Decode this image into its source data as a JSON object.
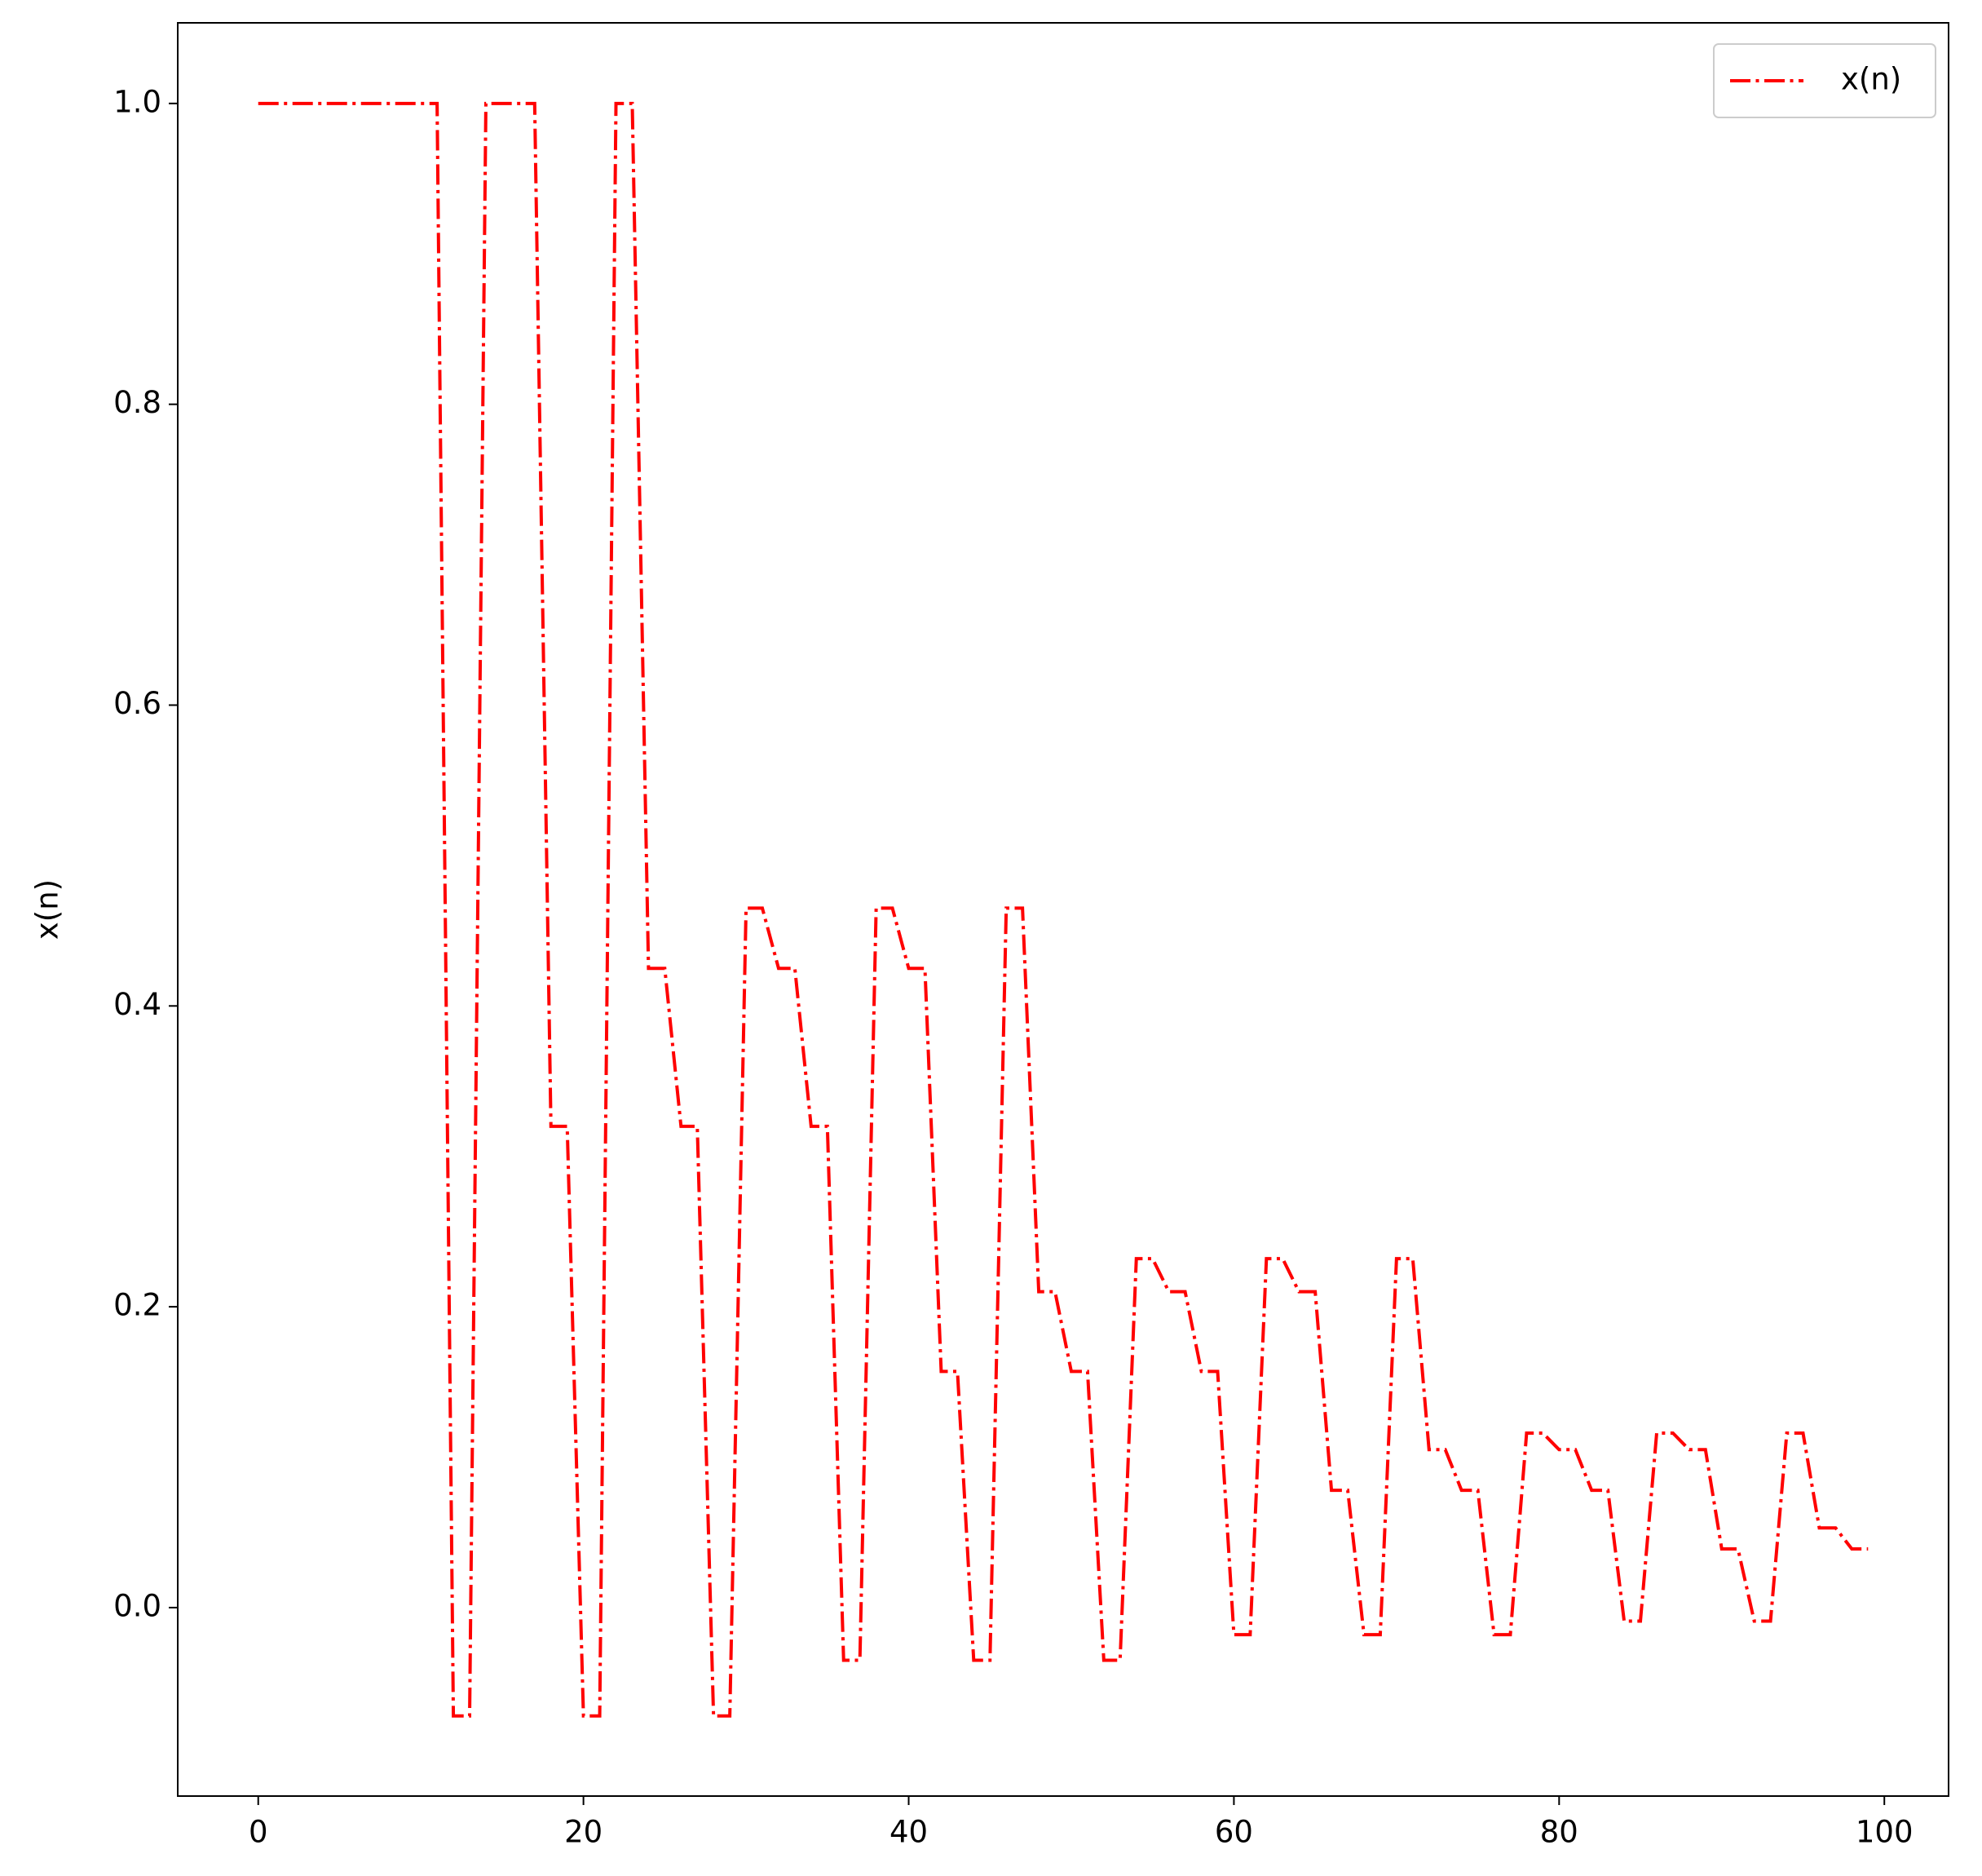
{
  "chart_data": {
    "type": "line",
    "y_label": "x(n)",
    "x": [
      0,
      1,
      2,
      3,
      4,
      5,
      6,
      7,
      8,
      9,
      10,
      11,
      12,
      13,
      14,
      15,
      16,
      17,
      18,
      19,
      20,
      21,
      22,
      23,
      24,
      25,
      26,
      27,
      28,
      29,
      30,
      31,
      32,
      33,
      34,
      35,
      36,
      37,
      38,
      39,
      40,
      41,
      42,
      43,
      44,
      45,
      46,
      47,
      48,
      49,
      50,
      51,
      52,
      53,
      54,
      55,
      56,
      57,
      58,
      59,
      60,
      61,
      62,
      63,
      64,
      65,
      66,
      67,
      68,
      69,
      70,
      71,
      72,
      73,
      74,
      75,
      76,
      77,
      78,
      79,
      80,
      81,
      82,
      83,
      84,
      85,
      86,
      87,
      88,
      89,
      90,
      91,
      92,
      93,
      94,
      95,
      96,
      97,
      98,
      99
    ],
    "series": [
      {
        "name": "x(n)",
        "color": "#ff0000",
        "linestyle": "dashdot",
        "values": [
          1,
          1,
          1,
          1,
          1,
          1,
          1,
          1,
          1,
          1,
          1,
          1,
          -0.072,
          -0.072,
          1,
          1,
          1,
          1,
          0.32,
          0.32,
          -0.072,
          -0.072,
          1,
          1,
          0.425,
          0.425,
          0.32,
          0.32,
          -0.072,
          -0.072,
          0.465,
          0.465,
          0.425,
          0.425,
          0.32,
          0.32,
          -0.035,
          -0.035,
          0.465,
          0.465,
          0.425,
          0.425,
          0.157,
          0.157,
          -0.035,
          -0.035,
          0.465,
          0.465,
          0.21,
          0.21,
          0.157,
          0.157,
          -0.035,
          -0.035,
          0.232,
          0.232,
          0.21,
          0.21,
          0.157,
          0.157,
          -0.018,
          -0.018,
          0.232,
          0.232,
          0.21,
          0.21,
          0.078,
          0.078,
          -0.018,
          -0.018,
          0.232,
          0.232,
          0.105,
          0.105,
          0.078,
          0.078,
          -0.018,
          -0.018,
          0.116,
          0.116,
          0.105,
          0.105,
          0.078,
          0.078,
          -0.009,
          -0.009,
          0.116,
          0.116,
          0.105,
          0.105,
          0.039,
          0.039,
          -0.009,
          -0.009,
          0.116,
          0.116,
          0.053,
          0.053,
          0.039,
          0.039
        ]
      }
    ],
    "xlim": [
      -4.95,
      103.95
    ],
    "xticks": [
      0,
      20,
      40,
      60,
      80,
      100
    ],
    "ylim": [
      -0.1253,
      1.0536
    ],
    "yticks": [
      {
        "value": 0,
        "label": "0.0"
      },
      0.2,
      0.4,
      0.6,
      0.8,
      {
        "value": 1,
        "label": "1.0"
      }
    ],
    "grid": false,
    "legend": "upper right"
  }
}
